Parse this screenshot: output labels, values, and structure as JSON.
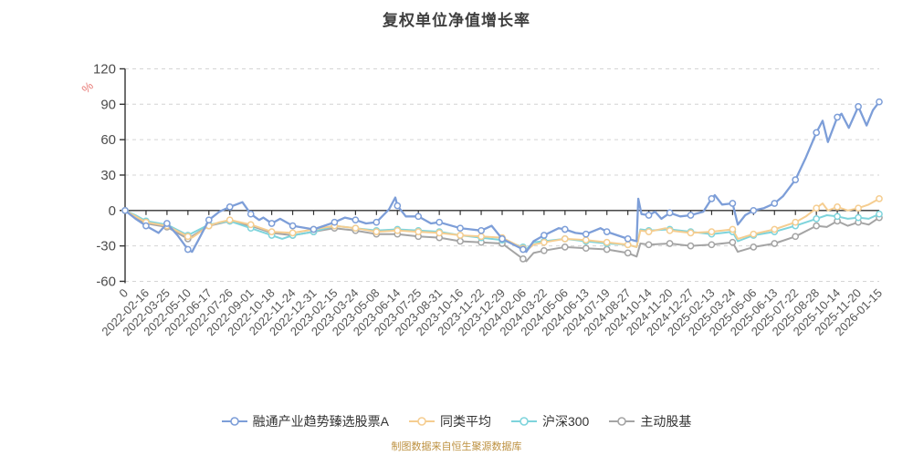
{
  "title": "复权单位净值增长率",
  "footer": "制图数据来自恒生聚源数据库",
  "y_axis": {
    "unit": "%",
    "unit_color": "#e87a76",
    "tick_values": [
      120,
      90,
      60,
      30,
      0,
      -30,
      -60
    ],
    "tick_labels": [
      "120",
      "90",
      "60",
      "30",
      "0",
      "-30",
      "-60"
    ]
  },
  "colors": {
    "axis_line": "#333333",
    "grid_line": "#d4d4d4",
    "axis_label": "#4c4c4c",
    "title_text": "#3f3f3f",
    "footer_text": "#bd9140"
  },
  "chart_data": {
    "type": "line",
    "title": "复权单位净值增长率",
    "ylabel": "%",
    "ylim": [
      -60,
      120
    ],
    "y_step": 30,
    "grid": "horizontal-dashed",
    "legend_position": "bottom",
    "x_labels": [
      "0",
      "2022-02-16",
      "2022-03-25",
      "2022-05-10",
      "2022-06-17",
      "2022-07-26",
      "2022-09-01",
      "2022-10-18",
      "2022-11-24",
      "2022-12-31",
      "2023-02-15",
      "2023-03-24",
      "2023-05-08",
      "2023-06-14",
      "2023-07-25",
      "2023-08-31",
      "2023-10-16",
      "2023-11-22",
      "2023-12-29",
      "2024-02-06",
      "2024-03-22",
      "2024-05-06",
      "2024-06-13",
      "2024-07-19",
      "2024-08-27",
      "2024-10-14",
      "2024-11-20",
      "2024-12-27",
      "2025-02-13",
      "2025-03-24",
      "2025-05-06",
      "2025-06-13",
      "2025-07-22",
      "2025-08-28",
      "2025-10-14",
      "2025-11-20",
      "2026-01-15"
    ],
    "series": [
      {
        "name": "融通产业趋势臻选股票A",
        "color": "#7d9ed8",
        "points": [
          [
            0,
            0
          ],
          [
            0.5,
            -7
          ],
          [
            1,
            -13
          ],
          [
            1.6,
            -19
          ],
          [
            2,
            -11
          ],
          [
            2.5,
            -21
          ],
          [
            3,
            -33
          ],
          [
            3.2,
            -35
          ],
          [
            3.5,
            -25
          ],
          [
            4,
            -8
          ],
          [
            4.5,
            -1
          ],
          [
            5,
            3
          ],
          [
            5.3,
            5
          ],
          [
            5.6,
            7
          ],
          [
            6,
            -3
          ],
          [
            6.4,
            -8
          ],
          [
            6.6,
            -6
          ],
          [
            7,
            -11
          ],
          [
            7.4,
            -7
          ],
          [
            8,
            -13
          ],
          [
            9,
            -16
          ],
          [
            9.5,
            -13
          ],
          [
            10,
            -10
          ],
          [
            10.5,
            -6
          ],
          [
            11,
            -8
          ],
          [
            11.5,
            -11
          ],
          [
            12,
            -10
          ],
          [
            12.6,
            1
          ],
          [
            12.9,
            11
          ],
          [
            13,
            4
          ],
          [
            13.4,
            -5
          ],
          [
            14,
            -5
          ],
          [
            14.6,
            -11
          ],
          [
            15,
            -10
          ],
          [
            16,
            -15
          ],
          [
            17,
            -17
          ],
          [
            17.5,
            -13
          ],
          [
            18,
            -24
          ],
          [
            19,
            -33
          ],
          [
            19.15,
            -35
          ],
          [
            19.5,
            -26
          ],
          [
            20,
            -21
          ],
          [
            20.7,
            -15
          ],
          [
            21,
            -16
          ],
          [
            21.5,
            -19
          ],
          [
            22,
            -20
          ],
          [
            22.7,
            -15
          ],
          [
            23,
            -18
          ],
          [
            23.5,
            -21
          ],
          [
            24,
            -24
          ],
          [
            24.42,
            -26
          ],
          [
            24.5,
            10
          ],
          [
            24.65,
            -3
          ],
          [
            25,
            -4
          ],
          [
            25.3,
            -1
          ],
          [
            25.6,
            -7
          ],
          [
            26,
            -2
          ],
          [
            26.5,
            -5
          ],
          [
            27,
            -4
          ],
          [
            27.6,
            -1
          ],
          [
            28,
            10
          ],
          [
            28.15,
            13
          ],
          [
            28.5,
            5
          ],
          [
            29,
            6
          ],
          [
            29.25,
            -12
          ],
          [
            29.6,
            -4
          ],
          [
            30,
            0
          ],
          [
            30.5,
            2
          ],
          [
            31,
            6
          ],
          [
            31.4,
            12
          ],
          [
            32,
            26
          ],
          [
            32.5,
            45
          ],
          [
            33,
            66
          ],
          [
            33.3,
            76
          ],
          [
            33.55,
            58
          ],
          [
            34,
            79
          ],
          [
            34.2,
            82
          ],
          [
            34.55,
            70
          ],
          [
            35,
            88
          ],
          [
            35.4,
            72
          ],
          [
            35.7,
            85
          ],
          [
            36,
            92
          ]
        ]
      },
      {
        "name": "同类平均",
        "color": "#f5cd90",
        "points": [
          [
            0,
            0
          ],
          [
            0.5,
            -5
          ],
          [
            1,
            -10
          ],
          [
            2,
            -13
          ],
          [
            3,
            -22
          ],
          [
            3.2,
            -23
          ],
          [
            4,
            -13
          ],
          [
            4.5,
            -10
          ],
          [
            5,
            -8
          ],
          [
            6,
            -12
          ],
          [
            7,
            -18
          ],
          [
            8,
            -19
          ],
          [
            9,
            -16
          ],
          [
            10,
            -13
          ],
          [
            11,
            -15
          ],
          [
            12,
            -18
          ],
          [
            13,
            -17
          ],
          [
            14,
            -18
          ],
          [
            15,
            -19
          ],
          [
            16,
            -21
          ],
          [
            17,
            -22
          ],
          [
            18,
            -23
          ],
          [
            19,
            -32
          ],
          [
            19.15,
            -34
          ],
          [
            19.5,
            -29
          ],
          [
            20,
            -27
          ],
          [
            21,
            -24
          ],
          [
            22,
            -25
          ],
          [
            23,
            -27
          ],
          [
            24,
            -29
          ],
          [
            24.42,
            -31
          ],
          [
            24.6,
            -17
          ],
          [
            25,
            -18
          ],
          [
            25.8,
            -15
          ],
          [
            26,
            -17
          ],
          [
            27,
            -19
          ],
          [
            28,
            -18
          ],
          [
            29,
            -16
          ],
          [
            29.25,
            -24
          ],
          [
            30,
            -20
          ],
          [
            31,
            -16
          ],
          [
            32,
            -10
          ],
          [
            32.5,
            -5
          ],
          [
            33,
            2
          ],
          [
            33.3,
            6
          ],
          [
            33.55,
            0
          ],
          [
            34,
            3
          ],
          [
            34.5,
            0
          ],
          [
            35,
            2
          ],
          [
            35.5,
            5
          ],
          [
            36,
            10
          ]
        ]
      },
      {
        "name": "沪深300",
        "color": "#7ed4dc",
        "points": [
          [
            0,
            0
          ],
          [
            0.5,
            -4
          ],
          [
            1,
            -9
          ],
          [
            2,
            -12
          ],
          [
            3,
            -21
          ],
          [
            4,
            -12
          ],
          [
            5,
            -9
          ],
          [
            6,
            -15
          ],
          [
            7,
            -21
          ],
          [
            7.5,
            -24
          ],
          [
            8,
            -21
          ],
          [
            9,
            -18
          ],
          [
            10,
            -13
          ],
          [
            11,
            -15
          ],
          [
            12,
            -17
          ],
          [
            13,
            -16
          ],
          [
            14,
            -17
          ],
          [
            15,
            -18
          ],
          [
            16,
            -21
          ],
          [
            17,
            -23
          ],
          [
            18,
            -25
          ],
          [
            19,
            -31
          ],
          [
            19.15,
            -33
          ],
          [
            19.5,
            -27
          ],
          [
            20,
            -26
          ],
          [
            21,
            -24
          ],
          [
            22,
            -26
          ],
          [
            23,
            -28
          ],
          [
            24,
            -29
          ],
          [
            24.42,
            -31
          ],
          [
            24.6,
            -16
          ],
          [
            25,
            -17
          ],
          [
            26,
            -16
          ],
          [
            27,
            -18
          ],
          [
            28,
            -20
          ],
          [
            29,
            -18
          ],
          [
            29.25,
            -26
          ],
          [
            30,
            -21
          ],
          [
            31,
            -18
          ],
          [
            32,
            -13
          ],
          [
            33,
            -7
          ],
          [
            33.5,
            -4
          ],
          [
            34,
            -5
          ],
          [
            34.5,
            -7
          ],
          [
            35,
            -6
          ],
          [
            35.5,
            -7
          ],
          [
            36,
            -3
          ]
        ]
      },
      {
        "name": "主动股基",
        "color": "#a4a4a4",
        "points": [
          [
            0,
            0
          ],
          [
            0.5,
            -6
          ],
          [
            1,
            -11
          ],
          [
            2,
            -14
          ],
          [
            3,
            -24
          ],
          [
            4,
            -13
          ],
          [
            5,
            -9
          ],
          [
            6,
            -13
          ],
          [
            7,
            -19
          ],
          [
            8,
            -21
          ],
          [
            9,
            -18
          ],
          [
            10,
            -15
          ],
          [
            11,
            -17
          ],
          [
            12,
            -20
          ],
          [
            13,
            -20
          ],
          [
            14,
            -22
          ],
          [
            15,
            -23
          ],
          [
            16,
            -26
          ],
          [
            17,
            -27
          ],
          [
            18,
            -28
          ],
          [
            19,
            -41
          ],
          [
            19.15,
            -43
          ],
          [
            19.5,
            -36
          ],
          [
            20,
            -34
          ],
          [
            21,
            -31
          ],
          [
            22,
            -32
          ],
          [
            23,
            -33
          ],
          [
            24,
            -36
          ],
          [
            24.42,
            -39
          ],
          [
            24.6,
            -28
          ],
          [
            25,
            -29
          ],
          [
            26,
            -28
          ],
          [
            27,
            -30
          ],
          [
            28,
            -29
          ],
          [
            29,
            -27
          ],
          [
            29.25,
            -35
          ],
          [
            30,
            -31
          ],
          [
            31,
            -28
          ],
          [
            32,
            -22
          ],
          [
            33,
            -13
          ],
          [
            33.5,
            -14
          ],
          [
            34,
            -9
          ],
          [
            34.5,
            -13
          ],
          [
            35,
            -10
          ],
          [
            35.5,
            -12
          ],
          [
            36,
            -6
          ]
        ]
      }
    ]
  }
}
